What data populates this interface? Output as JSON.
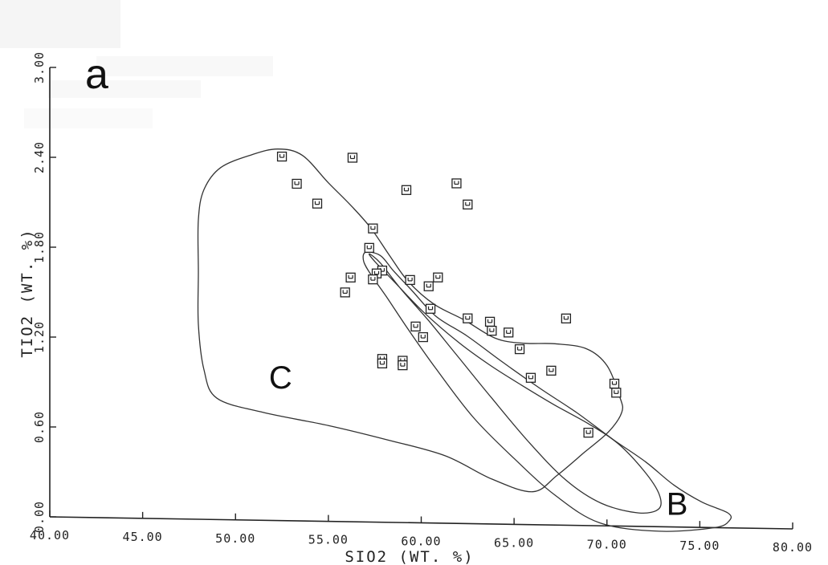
{
  "chart_data": {
    "type": "scatter",
    "panel_label": "a",
    "xlabel": "SIO2 (WT. %)",
    "ylabel": "TIO2 (WT. %)",
    "xlim": [
      40,
      80
    ],
    "ylim": [
      0,
      3
    ],
    "x_ticks": [
      "40.00",
      "45.00",
      "50.00",
      "55.00",
      "60.00",
      "65.00",
      "70.00",
      "75.00",
      "80.00"
    ],
    "y_ticks": [
      "0.00",
      "0.60",
      "1.20",
      "1.80",
      "2.40",
      "3.00"
    ],
    "points": [
      {
        "x": 52.5,
        "y": 2.43
      },
      {
        "x": 56.3,
        "y": 2.43
      },
      {
        "x": 61.9,
        "y": 2.27
      },
      {
        "x": 53.3,
        "y": 2.25
      },
      {
        "x": 59.2,
        "y": 2.22
      },
      {
        "x": 54.4,
        "y": 2.12
      },
      {
        "x": 62.5,
        "y": 2.13
      },
      {
        "x": 57.4,
        "y": 1.96
      },
      {
        "x": 57.2,
        "y": 1.83
      },
      {
        "x": 57.9,
        "y": 1.68
      },
      {
        "x": 57.6,
        "y": 1.66
      },
      {
        "x": 56.2,
        "y": 1.63
      },
      {
        "x": 57.4,
        "y": 1.62
      },
      {
        "x": 59.4,
        "y": 1.62
      },
      {
        "x": 60.9,
        "y": 1.64
      },
      {
        "x": 60.4,
        "y": 1.58
      },
      {
        "x": 55.9,
        "y": 1.53
      },
      {
        "x": 60.5,
        "y": 1.43
      },
      {
        "x": 62.5,
        "y": 1.37
      },
      {
        "x": 63.7,
        "y": 1.35
      },
      {
        "x": 67.8,
        "y": 1.38
      },
      {
        "x": 59.7,
        "y": 1.31
      },
      {
        "x": 63.8,
        "y": 1.29
      },
      {
        "x": 64.7,
        "y": 1.28
      },
      {
        "x": 60.1,
        "y": 1.24
      },
      {
        "x": 65.3,
        "y": 1.17
      },
      {
        "x": 57.9,
        "y": 1.09
      },
      {
        "x": 57.9,
        "y": 1.06
      },
      {
        "x": 59.0,
        "y": 1.08
      },
      {
        "x": 59.0,
        "y": 1.05
      },
      {
        "x": 67.0,
        "y": 1.03
      },
      {
        "x": 65.9,
        "y": 0.98
      },
      {
        "x": 70.4,
        "y": 0.95
      },
      {
        "x": 70.5,
        "y": 0.89
      },
      {
        "x": 69.0,
        "y": 0.62
      }
    ],
    "fields": [
      {
        "label": "C",
        "label_at": {
          "x": 51.8,
          "y": 0.88
        },
        "outline": [
          [
            48.3,
            2.2
          ],
          [
            49.2,
            2.35
          ],
          [
            50.9,
            2.44
          ],
          [
            52.3,
            2.48
          ],
          [
            53.6,
            2.44
          ],
          [
            55.0,
            2.26
          ],
          [
            56.3,
            2.1
          ],
          [
            57.3,
            1.96
          ],
          [
            58.3,
            1.78
          ],
          [
            59.3,
            1.61
          ],
          [
            60.7,
            1.46
          ],
          [
            62.3,
            1.36
          ],
          [
            64.0,
            1.24
          ],
          [
            65.5,
            1.21
          ],
          [
            67.2,
            1.21
          ],
          [
            68.9,
            1.18
          ],
          [
            70.0,
            1.07
          ],
          [
            70.7,
            0.86
          ],
          [
            70.8,
            0.76
          ],
          [
            70.1,
            0.63
          ],
          [
            68.8,
            0.49
          ],
          [
            67.3,
            0.33
          ],
          [
            66.0,
            0.22
          ],
          [
            63.8,
            0.3
          ],
          [
            61.3,
            0.45
          ],
          [
            58.2,
            0.55
          ],
          [
            55.0,
            0.64
          ],
          [
            51.5,
            0.72
          ],
          [
            49.0,
            0.81
          ],
          [
            48.3,
            1.0
          ],
          [
            48.0,
            1.3
          ],
          [
            48.0,
            1.65
          ],
          [
            48.0,
            2.0
          ]
        ]
      },
      {
        "label": "B",
        "label_at": {
          "x": 73.2,
          "y": 0.08
        },
        "outline": [
          [
            57.0,
            1.8
          ],
          [
            57.8,
            1.78
          ],
          [
            58.5,
            1.68
          ],
          [
            59.5,
            1.55
          ],
          [
            60.8,
            1.38
          ],
          [
            62.5,
            1.25
          ],
          [
            64.4,
            1.08
          ],
          [
            66.4,
            0.91
          ],
          [
            68.4,
            0.75
          ],
          [
            70.3,
            0.58
          ],
          [
            72.1,
            0.43
          ],
          [
            73.6,
            0.28
          ],
          [
            75.1,
            0.17
          ],
          [
            76.5,
            0.1
          ],
          [
            76.6,
            0.05
          ],
          [
            75.8,
            0.0
          ],
          [
            72.8,
            -0.03
          ],
          [
            69.6,
            0.02
          ],
          [
            67.2,
            0.2
          ],
          [
            65.0,
            0.44
          ],
          [
            62.8,
            0.71
          ],
          [
            60.8,
            1.03
          ],
          [
            59.3,
            1.29
          ],
          [
            58.1,
            1.51
          ],
          [
            57.3,
            1.65
          ],
          [
            56.9,
            1.74
          ]
        ]
      },
      {
        "label": "",
        "label_at": null,
        "outline": [
          [
            72.8,
            0.12
          ],
          [
            72.8,
            0.22
          ],
          [
            72.0,
            0.37
          ],
          [
            70.6,
            0.55
          ],
          [
            69.0,
            0.68
          ],
          [
            67.2,
            0.8
          ],
          [
            65.4,
            0.93
          ],
          [
            63.7,
            1.06
          ],
          [
            62.0,
            1.21
          ],
          [
            60.1,
            1.41
          ],
          [
            58.6,
            1.6
          ],
          [
            57.5,
            1.74
          ],
          [
            57.2,
            1.79
          ],
          [
            57.8,
            1.73
          ],
          [
            58.9,
            1.56
          ],
          [
            60.4,
            1.35
          ],
          [
            62.0,
            1.11
          ],
          [
            63.8,
            0.84
          ],
          [
            65.8,
            0.55
          ],
          [
            67.8,
            0.3
          ],
          [
            69.7,
            0.15
          ],
          [
            71.7,
            0.09
          ]
        ]
      }
    ]
  }
}
